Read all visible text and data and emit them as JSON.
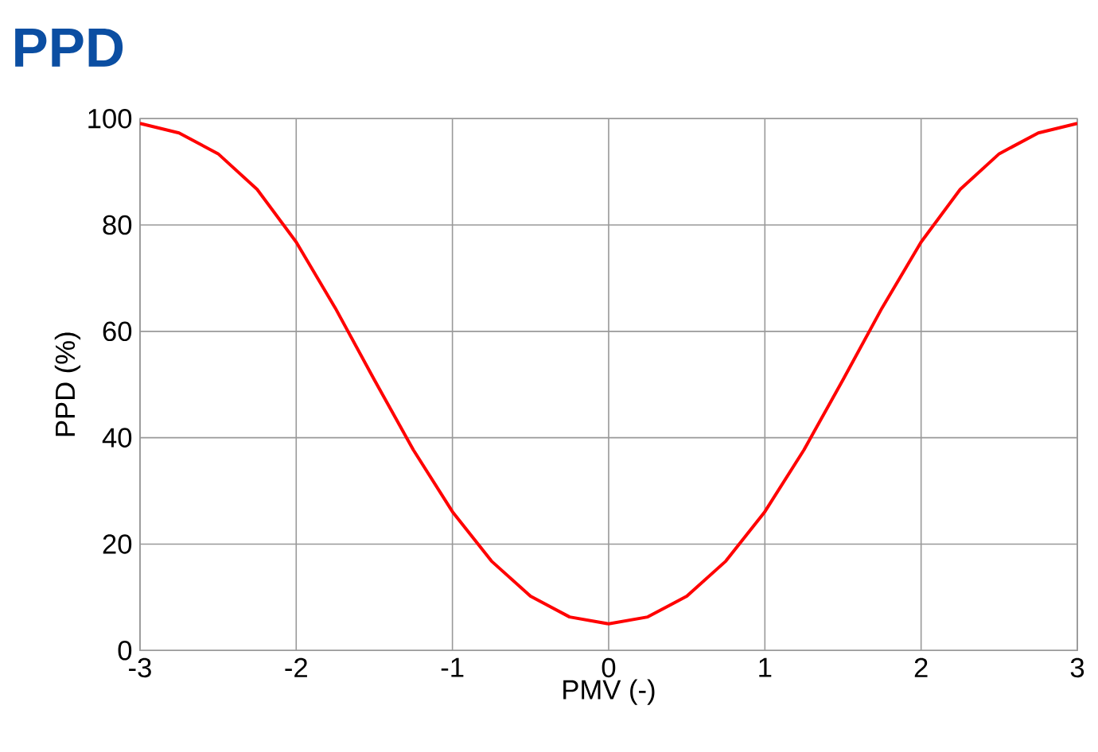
{
  "chart_data": {
    "type": "line",
    "title": "PPD",
    "xlabel": "PMV (-)",
    "ylabel": "PPD (%)",
    "x": [
      -3,
      -2.75,
      -2.5,
      -2.25,
      -2,
      -1.75,
      -1.5,
      -1.25,
      -1,
      -0.75,
      -0.5,
      -0.25,
      0,
      0.25,
      0.5,
      0.75,
      1,
      1.25,
      1.5,
      1.75,
      2,
      2.25,
      2.5,
      2.75,
      3
    ],
    "series": [
      {
        "color": "#ff0000",
        "values": [
          99.1,
          97.3,
          93.4,
          86.7,
          76.8,
          64.4,
          50.9,
          37.7,
          26.1,
          16.8,
          10.2,
          6.3,
          5,
          6.3,
          10.2,
          16.8,
          26.1,
          37.7,
          50.9,
          64.4,
          76.8,
          86.7,
          93.4,
          97.3,
          99.1
        ]
      }
    ],
    "xlim": [
      -3,
      3
    ],
    "ylim": [
      0,
      100
    ],
    "xticks": [
      -3,
      -2,
      -1,
      0,
      1,
      2,
      3
    ],
    "yticks": [
      0,
      20,
      40,
      60,
      80,
      100
    ],
    "grid": true,
    "marker": "none",
    "line_style": "solid"
  }
}
